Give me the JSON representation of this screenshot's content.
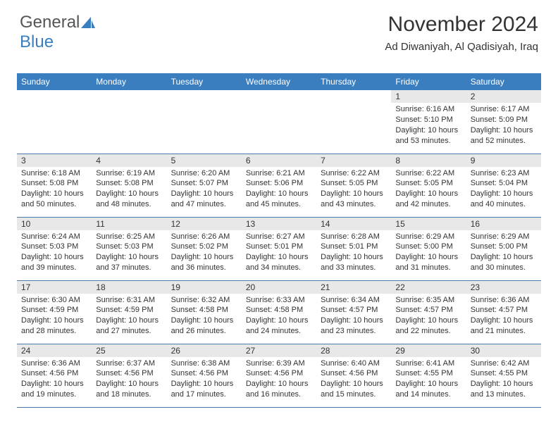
{
  "logo": {
    "part1": "General",
    "part2": "Blue"
  },
  "header": {
    "title": "November 2024",
    "location": "Ad Diwaniyah, Al Qadisiyah, Iraq"
  },
  "colors": {
    "header_bg": "#3a7ebf",
    "header_text": "#ffffff",
    "daynum_bg": "#e8e8e8",
    "text": "#333333",
    "row_border": "#4a7aa8"
  },
  "weekdays": [
    "Sunday",
    "Monday",
    "Tuesday",
    "Wednesday",
    "Thursday",
    "Friday",
    "Saturday"
  ],
  "grid": [
    [
      null,
      null,
      null,
      null,
      null,
      {
        "n": "1",
        "sr": "6:16 AM",
        "ss": "5:10 PM",
        "dl": "10 hours and 53 minutes."
      },
      {
        "n": "2",
        "sr": "6:17 AM",
        "ss": "5:09 PM",
        "dl": "10 hours and 52 minutes."
      }
    ],
    [
      {
        "n": "3",
        "sr": "6:18 AM",
        "ss": "5:08 PM",
        "dl": "10 hours and 50 minutes."
      },
      {
        "n": "4",
        "sr": "6:19 AM",
        "ss": "5:08 PM",
        "dl": "10 hours and 48 minutes."
      },
      {
        "n": "5",
        "sr": "6:20 AM",
        "ss": "5:07 PM",
        "dl": "10 hours and 47 minutes."
      },
      {
        "n": "6",
        "sr": "6:21 AM",
        "ss": "5:06 PM",
        "dl": "10 hours and 45 minutes."
      },
      {
        "n": "7",
        "sr": "6:22 AM",
        "ss": "5:05 PM",
        "dl": "10 hours and 43 minutes."
      },
      {
        "n": "8",
        "sr": "6:22 AM",
        "ss": "5:05 PM",
        "dl": "10 hours and 42 minutes."
      },
      {
        "n": "9",
        "sr": "6:23 AM",
        "ss": "5:04 PM",
        "dl": "10 hours and 40 minutes."
      }
    ],
    [
      {
        "n": "10",
        "sr": "6:24 AM",
        "ss": "5:03 PM",
        "dl": "10 hours and 39 minutes."
      },
      {
        "n": "11",
        "sr": "6:25 AM",
        "ss": "5:03 PM",
        "dl": "10 hours and 37 minutes."
      },
      {
        "n": "12",
        "sr": "6:26 AM",
        "ss": "5:02 PM",
        "dl": "10 hours and 36 minutes."
      },
      {
        "n": "13",
        "sr": "6:27 AM",
        "ss": "5:01 PM",
        "dl": "10 hours and 34 minutes."
      },
      {
        "n": "14",
        "sr": "6:28 AM",
        "ss": "5:01 PM",
        "dl": "10 hours and 33 minutes."
      },
      {
        "n": "15",
        "sr": "6:29 AM",
        "ss": "5:00 PM",
        "dl": "10 hours and 31 minutes."
      },
      {
        "n": "16",
        "sr": "6:29 AM",
        "ss": "5:00 PM",
        "dl": "10 hours and 30 minutes."
      }
    ],
    [
      {
        "n": "17",
        "sr": "6:30 AM",
        "ss": "4:59 PM",
        "dl": "10 hours and 28 minutes."
      },
      {
        "n": "18",
        "sr": "6:31 AM",
        "ss": "4:59 PM",
        "dl": "10 hours and 27 minutes."
      },
      {
        "n": "19",
        "sr": "6:32 AM",
        "ss": "4:58 PM",
        "dl": "10 hours and 26 minutes."
      },
      {
        "n": "20",
        "sr": "6:33 AM",
        "ss": "4:58 PM",
        "dl": "10 hours and 24 minutes."
      },
      {
        "n": "21",
        "sr": "6:34 AM",
        "ss": "4:57 PM",
        "dl": "10 hours and 23 minutes."
      },
      {
        "n": "22",
        "sr": "6:35 AM",
        "ss": "4:57 PM",
        "dl": "10 hours and 22 minutes."
      },
      {
        "n": "23",
        "sr": "6:36 AM",
        "ss": "4:57 PM",
        "dl": "10 hours and 21 minutes."
      }
    ],
    [
      {
        "n": "24",
        "sr": "6:36 AM",
        "ss": "4:56 PM",
        "dl": "10 hours and 19 minutes."
      },
      {
        "n": "25",
        "sr": "6:37 AM",
        "ss": "4:56 PM",
        "dl": "10 hours and 18 minutes."
      },
      {
        "n": "26",
        "sr": "6:38 AM",
        "ss": "4:56 PM",
        "dl": "10 hours and 17 minutes."
      },
      {
        "n": "27",
        "sr": "6:39 AM",
        "ss": "4:56 PM",
        "dl": "10 hours and 16 minutes."
      },
      {
        "n": "28",
        "sr": "6:40 AM",
        "ss": "4:56 PM",
        "dl": "10 hours and 15 minutes."
      },
      {
        "n": "29",
        "sr": "6:41 AM",
        "ss": "4:55 PM",
        "dl": "10 hours and 14 minutes."
      },
      {
        "n": "30",
        "sr": "6:42 AM",
        "ss": "4:55 PM",
        "dl": "10 hours and 13 minutes."
      }
    ]
  ],
  "labels": {
    "sunrise": "Sunrise:",
    "sunset": "Sunset:",
    "daylight": "Daylight:"
  }
}
